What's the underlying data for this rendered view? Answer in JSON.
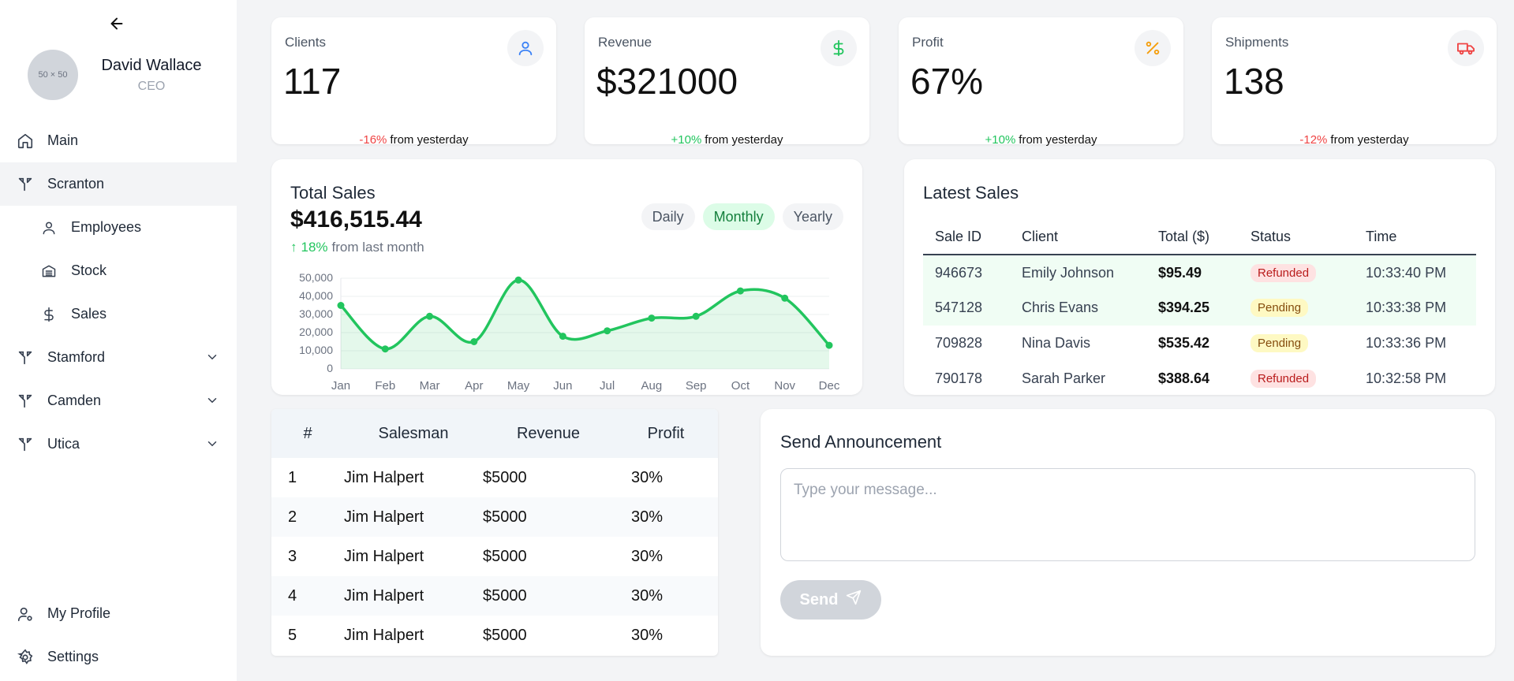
{
  "sidebar": {
    "profile": {
      "avatar_text": "50 × 50",
      "name": "David Wallace",
      "role": "CEO"
    },
    "items": [
      {
        "label": "Main"
      },
      {
        "label": "Scranton"
      },
      {
        "label": "Employees"
      },
      {
        "label": "Stock"
      },
      {
        "label": "Sales"
      },
      {
        "label": "Stamford"
      },
      {
        "label": "Camden"
      },
      {
        "label": "Utica"
      }
    ],
    "bottom": [
      {
        "label": "My Profile"
      },
      {
        "label": "Settings"
      }
    ]
  },
  "stats": [
    {
      "label": "Clients",
      "value": "117",
      "change": "-16%",
      "change_suffix": "from yesterday",
      "color": "#3b82f6"
    },
    {
      "label": "Revenue",
      "value": "$321000",
      "change": "+10%",
      "change_suffix": "from yesterday",
      "color": "#22c55e"
    },
    {
      "label": "Profit",
      "value": "67%",
      "change": "+10%",
      "change_suffix": "from yesterday",
      "color": "#f59e0b"
    },
    {
      "label": "Shipments",
      "value": "138",
      "change": "-12%",
      "change_suffix": "from yesterday",
      "color": "#ef4444"
    }
  ],
  "total_sales": {
    "title": "Total Sales",
    "total": "$416,515.44",
    "growth": "18%",
    "growth_suffix": "from last month",
    "periods": [
      "Daily",
      "Monthly",
      "Yearly"
    ],
    "active_period": "Monthly"
  },
  "chart_data": {
    "type": "line",
    "categories": [
      "Jan",
      "Feb",
      "Mar",
      "Apr",
      "May",
      "Jun",
      "Jul",
      "Aug",
      "Sep",
      "Oct",
      "Nov",
      "Dec"
    ],
    "values": [
      35000,
      11000,
      29000,
      15000,
      49000,
      18000,
      21000,
      28000,
      29000,
      43000,
      39000,
      13000
    ],
    "yticks": [
      "0",
      "10,000",
      "20,000",
      "30,000",
      "40,000",
      "50,000"
    ],
    "ylim": [
      0,
      50000
    ],
    "color": "#22c55e",
    "fill": "area",
    "grid": true
  },
  "latest_sales": {
    "title": "Latest Sales",
    "columns": [
      "Sale ID",
      "Client",
      "Total ($)",
      "Status",
      "Time"
    ],
    "rows": [
      {
        "id": "946673",
        "client": "Emily Johnson",
        "total": "$95.49",
        "status": "Refunded",
        "time": "10:33:40 PM"
      },
      {
        "id": "547128",
        "client": "Chris Evans",
        "total": "$394.25",
        "status": "Pending",
        "time": "10:33:38 PM"
      },
      {
        "id": "709828",
        "client": "Nina Davis",
        "total": "$535.42",
        "status": "Pending",
        "time": "10:33:36 PM"
      },
      {
        "id": "790178",
        "client": "Sarah Parker",
        "total": "$388.64",
        "status": "Refunded",
        "time": "10:32:58 PM"
      }
    ]
  },
  "salesmen": {
    "columns": [
      "#",
      "Salesman",
      "Revenue",
      "Profit"
    ],
    "rows": [
      {
        "rank": "1",
        "name": "Jim Halpert",
        "revenue": "$5000",
        "profit": "30%"
      },
      {
        "rank": "2",
        "name": "Jim Halpert",
        "revenue": "$5000",
        "profit": "30%"
      },
      {
        "rank": "3",
        "name": "Jim Halpert",
        "revenue": "$5000",
        "profit": "30%"
      },
      {
        "rank": "4",
        "name": "Jim Halpert",
        "revenue": "$5000",
        "profit": "30%"
      },
      {
        "rank": "5",
        "name": "Jim Halpert",
        "revenue": "$5000",
        "profit": "30%"
      }
    ]
  },
  "announcement": {
    "title": "Send Announcement",
    "placeholder": "Type your message...",
    "value": "",
    "send_label": "Send"
  }
}
